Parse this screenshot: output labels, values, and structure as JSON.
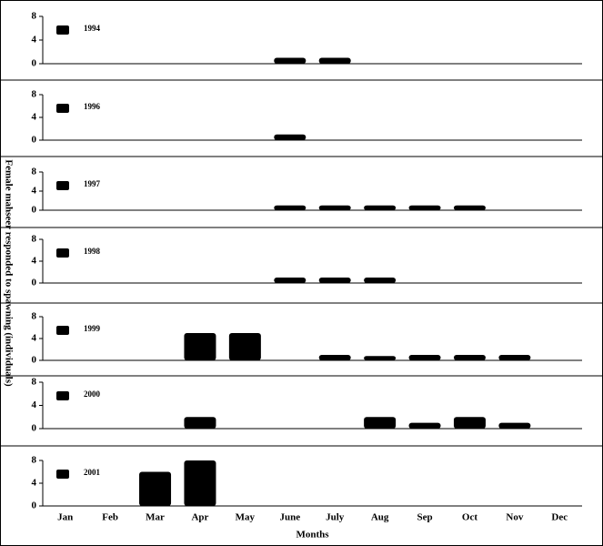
{
  "ylabel": "Female mahseer responded to spawning (individuals)",
  "chart_data": [
    {
      "type": "bar",
      "series": [
        {
          "name": "1994",
          "color": "#000000",
          "values": [
            null,
            null,
            null,
            null,
            null,
            1,
            1,
            null,
            null,
            null,
            null,
            null
          ]
        }
      ],
      "ylim": [
        0,
        8
      ],
      "yticks": [
        0,
        4,
        8
      ]
    },
    {
      "type": "bar",
      "series": [
        {
          "name": "1996",
          "color": "#000000",
          "values": [
            null,
            null,
            null,
            null,
            null,
            1,
            null,
            null,
            null,
            null,
            null,
            null
          ]
        }
      ],
      "ylim": [
        0,
        8
      ],
      "yticks": [
        0,
        4,
        8
      ]
    },
    {
      "type": "bar",
      "series": [
        {
          "name": "1997",
          "color": "#000000",
          "values": [
            null,
            null,
            null,
            null,
            null,
            1,
            1,
            1,
            1,
            1,
            null,
            null
          ]
        }
      ],
      "ylim": [
        0,
        8
      ],
      "yticks": [
        0,
        4,
        8
      ]
    },
    {
      "type": "bar",
      "series": [
        {
          "name": "1998",
          "color": "#000000",
          "values": [
            null,
            null,
            null,
            null,
            null,
            1,
            1,
            1,
            null,
            null,
            null,
            null
          ]
        }
      ],
      "ylim": [
        0,
        8
      ],
      "yticks": [
        0,
        4,
        8
      ]
    },
    {
      "type": "bar",
      "series": [
        {
          "name": "1999",
          "color": "#000000",
          "values": [
            null,
            null,
            null,
            5,
            5,
            null,
            1,
            0.8,
            1,
            1,
            1,
            null
          ]
        }
      ],
      "ylim": [
        0,
        8
      ],
      "yticks": [
        0,
        4,
        8
      ]
    },
    {
      "type": "bar",
      "series": [
        {
          "name": "2000",
          "color": "#000000",
          "values": [
            null,
            null,
            null,
            2,
            null,
            null,
            null,
            2,
            1,
            2,
            1,
            null
          ]
        }
      ],
      "ylim": [
        0,
        8
      ],
      "yticks": [
        0,
        4,
        8
      ]
    },
    {
      "type": "bar",
      "series": [
        {
          "name": "2001",
          "color": "#000000",
          "values": [
            null,
            null,
            6,
            8,
            null,
            null,
            null,
            null,
            null,
            null,
            null,
            null
          ]
        }
      ],
      "ylim": [
        0,
        8
      ],
      "yticks": [
        0,
        4,
        8
      ],
      "categories": [
        "Jan",
        "Feb",
        "Mar",
        "Apr",
        "May",
        "June",
        "July",
        "Aug",
        "Sep",
        "Oct",
        "Nov",
        "Dec"
      ],
      "xlabel": "Months"
    }
  ]
}
